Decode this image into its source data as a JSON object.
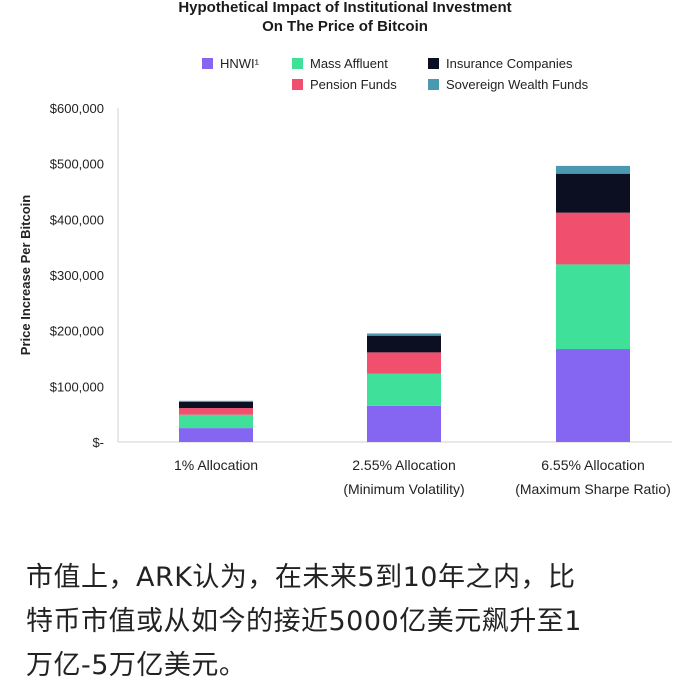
{
  "chart_data": {
    "type": "bar",
    "stacked": true,
    "title": "Hypothetical Impact of Institutional Investment",
    "subtitle": "On The Price of Bitcoin",
    "xlabel": "",
    "ylabel": "Price Increase Per Bitcoin",
    "ylim": [
      0,
      600000
    ],
    "yticks": [
      0,
      100000,
      200000,
      300000,
      400000,
      500000,
      600000
    ],
    "ytick_labels": [
      "$-",
      "$100,000",
      "$200,000",
      "$300,000",
      "$400,000",
      "$500,000",
      "$600,000"
    ],
    "grid": false,
    "legend_position": "top",
    "categories": [
      [
        "1% Allocation"
      ],
      [
        "2.55% Allocation",
        "(Minimum Volatility)"
      ],
      [
        "6.55% Allocation",
        "(Maximum Sharpe Ratio)"
      ]
    ],
    "series": [
      {
        "name": "HNWI¹",
        "color": "#8466f2",
        "values": [
          25000,
          65000,
          167000
        ]
      },
      {
        "name": "Mass Affluent",
        "color": "#3fe09a",
        "values": [
          24000,
          58000,
          152000
        ]
      },
      {
        "name": "Pension Funds",
        "color": "#f0506e",
        "values": [
          12000,
          38000,
          93000
        ]
      },
      {
        "name": "Insurance Companies",
        "color": "#0c0f22",
        "values": [
          11000,
          30000,
          70000
        ]
      },
      {
        "name": "Sovereign Wealth Funds",
        "color": "#4b98b1",
        "values": [
          2000,
          4000,
          14000
        ]
      }
    ]
  },
  "caption": {
    "lines": [
      "市值上，ARK认为，在未来5到10年之内，比",
      "特币市值或从如今的接近5000亿美元飙升至1",
      "万亿-5万亿美元。"
    ]
  }
}
